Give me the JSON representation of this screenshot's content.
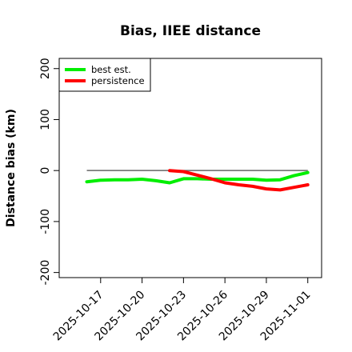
{
  "chart_data": {
    "type": "line",
    "title": "Bias, IIEE distance",
    "xlabel": "",
    "ylabel": "Distance bias (km)",
    "ylim": [
      -210,
      220
    ],
    "yticks": [
      -200,
      -100,
      0,
      100,
      200
    ],
    "xlim": [
      "2025-10-14",
      "2025-11-02"
    ],
    "xticks": [
      "2025-10-17",
      "2025-10-20",
      "2025-10-23",
      "2025-10-26",
      "2025-10-29",
      "2025-11-01"
    ],
    "reference_line": {
      "y": 0,
      "from": "2025-10-16",
      "to": "2025-11-01",
      "color": "#666666"
    },
    "legend": {
      "position": "top-left"
    },
    "series": [
      {
        "name": "best est.",
        "color": "#00ee00",
        "x": [
          "2025-10-16",
          "2025-10-17",
          "2025-10-18",
          "2025-10-19",
          "2025-10-20",
          "2025-10-21",
          "2025-10-22",
          "2025-10-23",
          "2025-10-24",
          "2025-10-25",
          "2025-10-26",
          "2025-10-27",
          "2025-10-28",
          "2025-10-29",
          "2025-10-30",
          "2025-10-31",
          "2025-11-01"
        ],
        "y": [
          -22,
          -19,
          -18,
          -18,
          -17,
          -20,
          -24,
          -16,
          -16,
          -17,
          -17,
          -17,
          -17,
          -19,
          -18,
          -10,
          -4
        ]
      },
      {
        "name": "persistence",
        "color": "#ff0000",
        "x": [
          "2025-10-22",
          "2025-10-23",
          "2025-10-24",
          "2025-10-25",
          "2025-10-26",
          "2025-10-27",
          "2025-10-28",
          "2025-10-29",
          "2025-10-30",
          "2025-10-31",
          "2025-11-01"
        ],
        "y": [
          0,
          -2,
          -9,
          -16,
          -24,
          -28,
          -31,
          -36,
          -38,
          -33,
          -28
        ]
      }
    ]
  }
}
